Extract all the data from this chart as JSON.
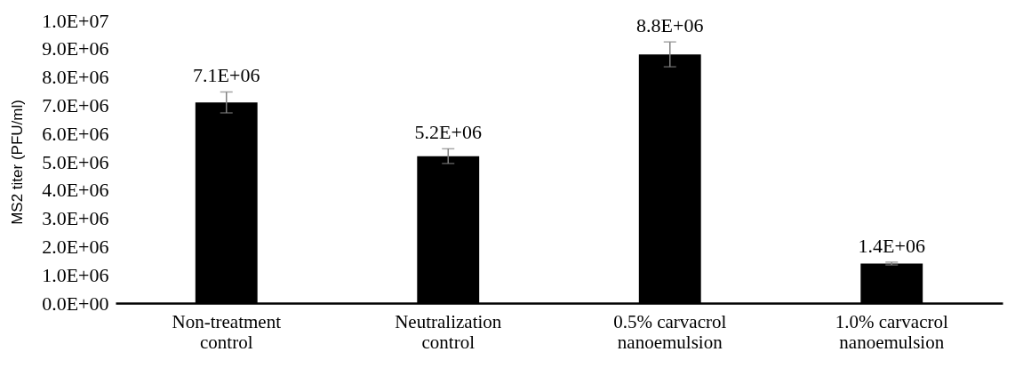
{
  "chart_data": {
    "type": "bar",
    "ylabel": "MS2 titer (PFU/ml)",
    "categories": [
      "Non-treatment control",
      "Neutralization control",
      "0.5% carvacrol nanoemulsion",
      "1.0% carvacrol nanoemulsion"
    ],
    "values": [
      7100000,
      5200000,
      8800000,
      1400000
    ],
    "errors": [
      370000,
      260000,
      440000,
      50000
    ],
    "value_labels": [
      "7.1E+06",
      "5.2E+06",
      "8.8E+06",
      "1.4E+06"
    ],
    "color": "#000000",
    "ylim": [
      0,
      10000000
    ],
    "yticks": [
      {
        "value": 0,
        "label": "0.0E+00"
      },
      {
        "value": 1000000,
        "label": "1.0E+06"
      },
      {
        "value": 2000000,
        "label": "2.0E+06"
      },
      {
        "value": 3000000,
        "label": "3.0E+06"
      },
      {
        "value": 4000000,
        "label": "4.0E+06"
      },
      {
        "value": 5000000,
        "label": "5.0E+06"
      },
      {
        "value": 6000000,
        "label": "6.0E+06"
      },
      {
        "value": 7000000,
        "label": "7.0E+06"
      },
      {
        "value": 8000000,
        "label": "8.0E+06"
      },
      {
        "value": 9000000,
        "label": "9.0E+06"
      },
      {
        "value": 10000000,
        "label": "1.0E+07"
      }
    ],
    "grid": false
  }
}
